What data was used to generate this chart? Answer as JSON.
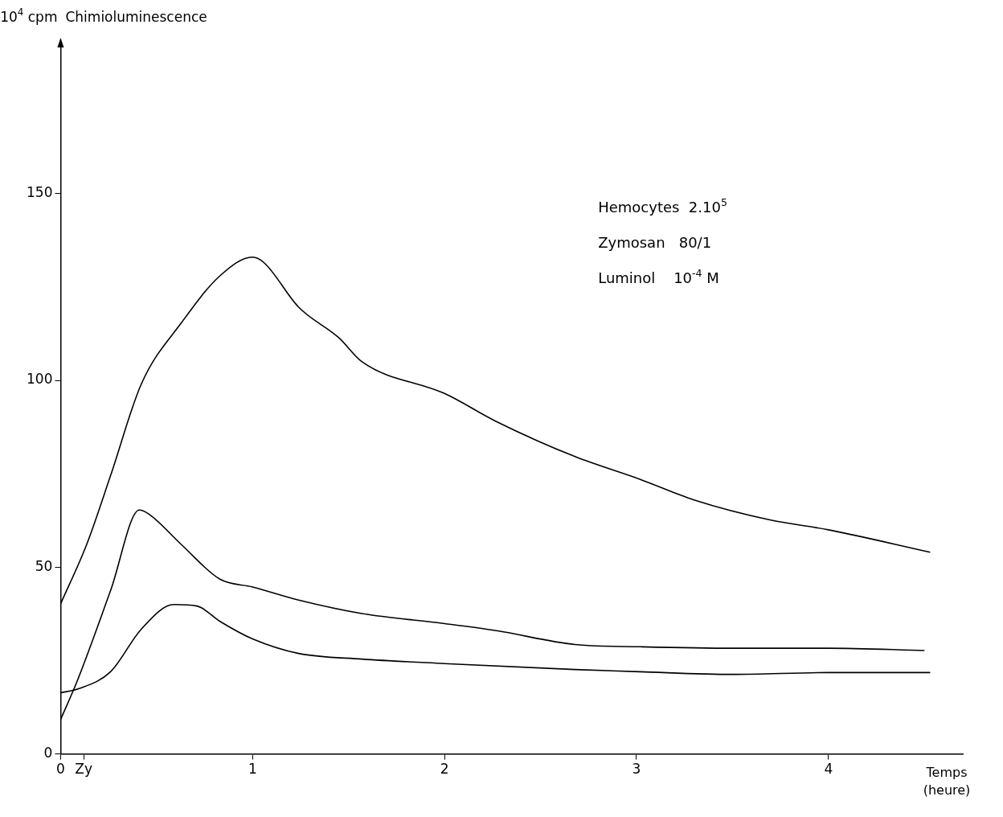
{
  "chart_data": {
    "type": "line",
    "title": "Chimioluminescence",
    "ylabel": "10$^{4}$ cpm",
    "xlabel": "Temps (heure)",
    "annotations": [
      "Hemocytes  2.10$^{5}$",
      "Zymosan   80/1",
      "Luminol    10$^{-4}$ M"
    ],
    "xlim": [
      0,
      4.7
    ],
    "xticks": [
      0,
      {
        "value": 0.12,
        "label": "Zy"
      },
      1,
      2,
      3,
      4
    ],
    "ylim": [
      0,
      190
    ],
    "yticks": [
      0,
      50,
      100,
      150
    ],
    "grid": false,
    "legend": false,
    "marker": "none",
    "line_style": "solid",
    "series": [
      {
        "color": "#000000",
        "x": [
          0,
          0.135,
          0.26,
          0.42,
          0.63,
          0.83,
          1.0,
          1.06,
          1.24,
          1.45,
          1.57,
          2.0,
          2.27,
          2.68,
          3.02,
          3.3,
          3.7,
          4.0,
          4.53
        ],
        "values": [
          40.2,
          56,
          74.5,
          99,
          115.5,
          128,
          133,
          131.5,
          119.6,
          111.4,
          105,
          96.5,
          89,
          79.6,
          73.5,
          68,
          62.6,
          60,
          54
        ]
      },
      {
        "color": "#000000",
        "x": [
          0,
          0.09,
          0.26,
          0.41,
          0.46,
          0.63,
          0.83,
          1.0,
          1.24,
          1.57,
          2.0,
          2.27,
          2.68,
          3.02,
          3.5,
          4.0,
          4.5
        ],
        "values": [
          9.2,
          20,
          43.7,
          65.3,
          64.2,
          56,
          46.8,
          44.7,
          41.2,
          37.6,
          34.9,
          33,
          29.3,
          28.7,
          28.3,
          28.3,
          27.7
        ]
      },
      {
        "color": "#000000",
        "x": [
          0,
          0.09,
          0.26,
          0.42,
          0.59,
          0.71,
          0.83,
          1.0,
          1.24,
          1.57,
          2.0,
          2.68,
          3.02,
          3.5,
          4.0,
          4.53
        ],
        "values": [
          16.4,
          17.4,
          22,
          33.4,
          40,
          39.6,
          35.5,
          30.8,
          26.9,
          25.4,
          24.2,
          22.6,
          22,
          21.3,
          21.8,
          21.8
        ]
      }
    ]
  }
}
